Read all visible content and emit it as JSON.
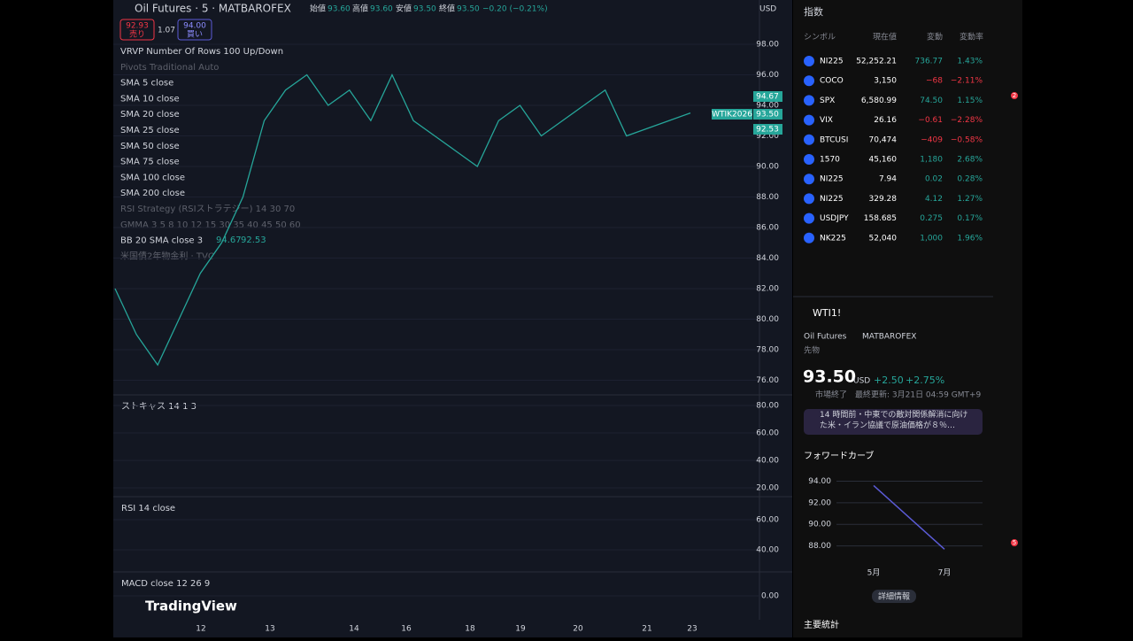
{
  "header": {
    "symbol": "Oil Futures · 5 · MATBAROFEX",
    "open_label": "始値",
    "open": "93.60",
    "high_label": "高値",
    "high": "93.60",
    "low_label": "安値",
    "low": "93.50",
    "close_label": "終値",
    "close": "93.50",
    "change": "−0.20 (−0.21%)",
    "sell_price": "92.93",
    "sell_label": "売り",
    "spread": "1.07",
    "buy_price": "94.00",
    "buy_label": "買い",
    "currency": "USD"
  },
  "indicators": [
    "VRVP Number Of Rows 100 Up/Down",
    "Pivots Traditional Auto",
    "SMA 5 close",
    "SMA 10 close",
    "SMA 20 close",
    "SMA 25 close",
    "SMA 50 close",
    "SMA 75 close",
    "SMA 100 close",
    "SMA 200 close",
    "RSI Strategy (RSIストラテジー) 14 30 70",
    "GMMA 3 5 8 10 12 15 30 35 40 45 50 60",
    "BB 20 SMA close 3",
    "米国債2年物金利 · TVC"
  ],
  "bb_values": [
    "94.67",
    "92.53"
  ],
  "price_chart": {
    "ylim": [
      75.1,
      100.9
    ],
    "yticks": [
      {
        "value": 76,
        "label": "76.00"
      },
      {
        "value": 78,
        "label": "78.00"
      },
      {
        "value": 80,
        "label": "80.00"
      },
      {
        "value": 82,
        "label": "82.00"
      },
      {
        "value": 84,
        "label": "84.00"
      },
      {
        "value": 86,
        "label": "86.00"
      },
      {
        "value": 88,
        "label": "88.00"
      },
      {
        "value": 90,
        "label": "90.00"
      },
      {
        "value": 92,
        "label": "92.00"
      },
      {
        "value": 94,
        "label": "94.00"
      },
      {
        "value": 96,
        "label": "96.00"
      },
      {
        "value": 98,
        "label": "98.00"
      }
    ],
    "closes": [
      82,
      79,
      77,
      80,
      83,
      85,
      88,
      93,
      95,
      96,
      94,
      95,
      93,
      96,
      93,
      92,
      91,
      90,
      93,
      94,
      92,
      93,
      94,
      95,
      92,
      92.5,
      93,
      93.5
    ],
    "upper_label": "94.67",
    "last_label": "93.50",
    "lower_label": "92.53",
    "contract": "WTIK2026",
    "x_labels": [
      "12",
      "13",
      "14",
      "16",
      "18",
      "19",
      "20",
      "21",
      "23"
    ]
  },
  "stoch": {
    "title": "ストキャス 14 1 3",
    "yticks": [
      {
        "value": 80,
        "label": "80.00"
      },
      {
        "value": 60,
        "label": "60.00"
      },
      {
        "value": 40,
        "label": "40.00"
      },
      {
        "value": 20,
        "label": "20.00"
      }
    ]
  },
  "rsi": {
    "title": "RSI 14 close",
    "yticks": [
      {
        "value": 60,
        "label": "60.00"
      },
      {
        "value": 40,
        "label": "40.00"
      }
    ]
  },
  "macd": {
    "title": "MACD close 12 26 9",
    "yticks": [
      {
        "value": 0,
        "label": "0.00"
      }
    ]
  },
  "brand": "TradingView",
  "watchlist": {
    "title": "指数",
    "columns": [
      "シンボル",
      "現在値",
      "変動",
      "変動率"
    ],
    "rows": [
      [
        "NI225",
        "52,252.21",
        "736.77",
        "1.43%"
      ],
      [
        "COCO",
        "3,150",
        "−68",
        "−2.11%"
      ],
      [
        "SPX",
        "6,580.99",
        "74.50",
        "1.15%"
      ],
      [
        "VIX",
        "26.16",
        "−0.61",
        "−2.28%"
      ],
      [
        "BTCUSI",
        "70,474",
        "−409",
        "−0.58%"
      ],
      [
        "1570",
        "45,160",
        "1,180",
        "2.68%"
      ],
      [
        "NI225",
        "7.94",
        "0.02",
        "0.28%"
      ],
      [
        "NI225",
        "329.28",
        "4.12",
        "1.27%"
      ],
      [
        "USDJPY",
        "158.685",
        "0.275",
        "0.17%"
      ],
      [
        "NK225",
        "52,040",
        "1,000",
        "1.96%"
      ]
    ]
  },
  "detail": {
    "symbol": "WTI1!",
    "name": "Oil Futures",
    "exchange": "MATBAROFEX",
    "kind": "先物",
    "price": "93.50",
    "currency": "USD",
    "change": "+2.50",
    "change_pct": "+2.75%",
    "status": "市場終了",
    "updated": "最終更新: 3月21日 04:59 GMT+9",
    "news": "14 時間前・中東での敵対関係解消に向けた米・イラン協議で原油価格が８％…",
    "curve_title": "フォワードカーブ",
    "details_button": "詳細情報",
    "stats_title": "主要統計"
  },
  "forward_curve": {
    "categories": [
      "5月",
      "7月"
    ],
    "values": [
      93.6,
      87.7
    ],
    "ylim": [
      86.9,
      94.7
    ],
    "yticks": [
      {
        "value": 88,
        "label": "88.00"
      },
      {
        "value": 90,
        "label": "90.00"
      },
      {
        "value": 92,
        "label": "92.00"
      },
      {
        "value": 94,
        "label": "94.00"
      }
    ],
    "color": "#5b5bd6"
  },
  "badges": {
    "alerts": "2",
    "feed": "5"
  }
}
